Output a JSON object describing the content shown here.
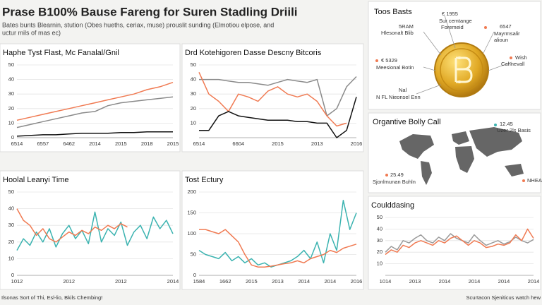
{
  "header": {
    "title": "Prase B100% Bause Fareng for Suren Stadling Driili",
    "subtitle": [
      "Bates bunts Blearnin, stution (Obes hueths, ceriax, muse) prouslit sunding (Elmotiou elpose, and",
      "uctur mils of mas ec)"
    ]
  },
  "bitcoin_panel": {
    "title": "Toos Basts",
    "labels": [
      "€ 1955",
      "Sur cemtange",
      "Foremeid",
      "5RAM",
      "Hlesonalt Blib",
      "6547",
      "Mayrmsalir",
      "alioun",
      "€ 5329",
      "Meesional Botin",
      "Wish",
      "Cahnevall",
      "Nal",
      "N FL Nieonsel Enn"
    ]
  },
  "map_panel": {
    "title": "Organtive Bolly Call",
    "labels": [
      "12.45",
      "Uzer 2ls Basis",
      "25.49",
      "Sjonlmunan Buhln",
      "NHEAL"
    ]
  },
  "footer": {
    "left": "Ilsonas Sort of Thi, Esl-lio, Bkils Chembing!",
    "right": "Scurtacon Sjeniticus watch hew"
  },
  "chart_data": [
    {
      "type": "line",
      "title": "Haphe Tyst Flast, Mc Fanalal/Gnil",
      "categories": [
        "6514",
        null,
        "6557",
        null,
        "6462",
        null,
        "2014",
        null,
        "2015",
        null,
        "2018",
        null,
        "2015"
      ],
      "ylim": [
        0,
        50
      ],
      "yticks": [
        0,
        10,
        20,
        30,
        40,
        50
      ],
      "grid": true,
      "series": [
        {
          "color": "#f07a52",
          "values": [
            12,
            14,
            16,
            18,
            20,
            22,
            24,
            26,
            28,
            30,
            33,
            35,
            38
          ]
        },
        {
          "color": "#8a8a8a",
          "values": [
            7,
            9,
            11,
            13,
            15,
            17,
            18,
            22,
            24,
            25,
            26,
            27,
            28
          ]
        },
        {
          "color": "#111111",
          "values": [
            1,
            1.5,
            2,
            2,
            2.5,
            3,
            3,
            3,
            3.5,
            3.5,
            4,
            4,
            4
          ]
        }
      ]
    },
    {
      "type": "line",
      "title": "Drd Kotehigoren Dasse Descny Bitcoris",
      "categories": [
        "6514",
        null,
        null,
        null,
        "6604",
        null,
        null,
        null,
        "2015",
        null,
        null,
        null,
        "2013",
        null,
        null,
        null,
        "2016"
      ],
      "ylim": [
        0,
        50
      ],
      "yticks": [
        10,
        20,
        30,
        40,
        50
      ],
      "grid": true,
      "series": [
        {
          "color": "#8a8a8a",
          "values": [
            40,
            40,
            40,
            39,
            38,
            38,
            37,
            36,
            38,
            40,
            39,
            38,
            40,
            15,
            20,
            35,
            42
          ]
        },
        {
          "color": "#f07a52",
          "values": [
            45,
            30,
            25,
            18,
            30,
            28,
            25,
            32,
            35,
            30,
            28,
            30,
            25,
            15,
            8,
            10,
            null
          ]
        },
        {
          "color": "#111111",
          "values": [
            5,
            5,
            15,
            18,
            15,
            14,
            13,
            12,
            12,
            12,
            11,
            11,
            10,
            10,
            0,
            5,
            28
          ]
        }
      ]
    },
    {
      "type": "line",
      "title": "Hoolal Leanyi Time",
      "categories": [
        "1012",
        null,
        null,
        null,
        null,
        null,
        null,
        null,
        "2012",
        null,
        null,
        null,
        null,
        null,
        null,
        null,
        "2012",
        null,
        null,
        null,
        null,
        null,
        null,
        null,
        "2014"
      ],
      "ylim": [
        0,
        50
      ],
      "yticks": [
        0,
        10,
        20,
        30,
        40,
        50
      ],
      "grid": true,
      "series": [
        {
          "color": "#3bb3b0",
          "values": [
            15,
            22,
            18,
            26,
            20,
            28,
            17,
            25,
            30,
            22,
            27,
            19,
            38,
            20,
            28,
            24,
            32,
            18,
            26,
            30,
            22,
            35,
            28,
            33,
            25
          ]
        },
        {
          "color": "#f07a52",
          "values": [
            40,
            33,
            30,
            24,
            28,
            22,
            20,
            23,
            26,
            24,
            27,
            25,
            29,
            27,
            30,
            28,
            31,
            29,
            null,
            null,
            null,
            null,
            null,
            null,
            null
          ]
        }
      ]
    },
    {
      "type": "line",
      "title": "Tost Ectury",
      "categories": [
        "1584",
        null,
        null,
        null,
        "1662",
        null,
        null,
        null,
        "2015",
        null,
        null,
        null,
        "2013",
        null,
        null,
        null,
        "2014",
        null,
        null,
        null,
        "2014",
        null,
        null,
        null,
        "2016"
      ],
      "ylim": [
        0,
        200
      ],
      "yticks": [
        0,
        50,
        100,
        150,
        200
      ],
      "grid": true,
      "series": [
        {
          "color": "#3bb3b0",
          "values": [
            60,
            50,
            45,
            40,
            55,
            35,
            45,
            30,
            40,
            25,
            30,
            20,
            25,
            30,
            35,
            45,
            60,
            40,
            80,
            30,
            100,
            60,
            180,
            110,
            150
          ]
        },
        {
          "color": "#f07a52",
          "values": [
            110,
            110,
            105,
            100,
            110,
            95,
            80,
            50,
            25,
            20,
            20,
            22,
            25,
            28,
            30,
            35,
            30,
            40,
            45,
            50,
            60,
            55,
            65,
            70,
            75
          ]
        }
      ]
    },
    {
      "type": "line",
      "title": "Coulddasing",
      "categories": [
        "1014",
        null,
        null,
        null,
        null,
        "2013",
        null,
        null,
        null,
        null,
        "2014",
        null,
        null,
        null,
        null,
        "2014",
        null,
        null,
        null,
        null,
        "2014",
        null,
        null,
        null,
        null,
        "2014"
      ],
      "ylim": [
        0,
        50
      ],
      "yticks": [
        10,
        20,
        30,
        40,
        50
      ],
      "grid": true,
      "series": [
        {
          "color": "#9a9a9a",
          "values": [
            20,
            25,
            22,
            30,
            28,
            32,
            35,
            30,
            28,
            33,
            30,
            36,
            32,
            30,
            28,
            35,
            30,
            26,
            28,
            30,
            27,
            29,
            33,
            30,
            28,
            31
          ]
        },
        {
          "color": "#f07a52",
          "values": [
            18,
            22,
            20,
            26,
            24,
            28,
            30,
            28,
            26,
            30,
            28,
            32,
            34,
            30,
            26,
            30,
            28,
            24,
            25,
            27,
            26,
            28,
            35,
            30,
            40,
            32
          ]
        }
      ]
    }
  ]
}
